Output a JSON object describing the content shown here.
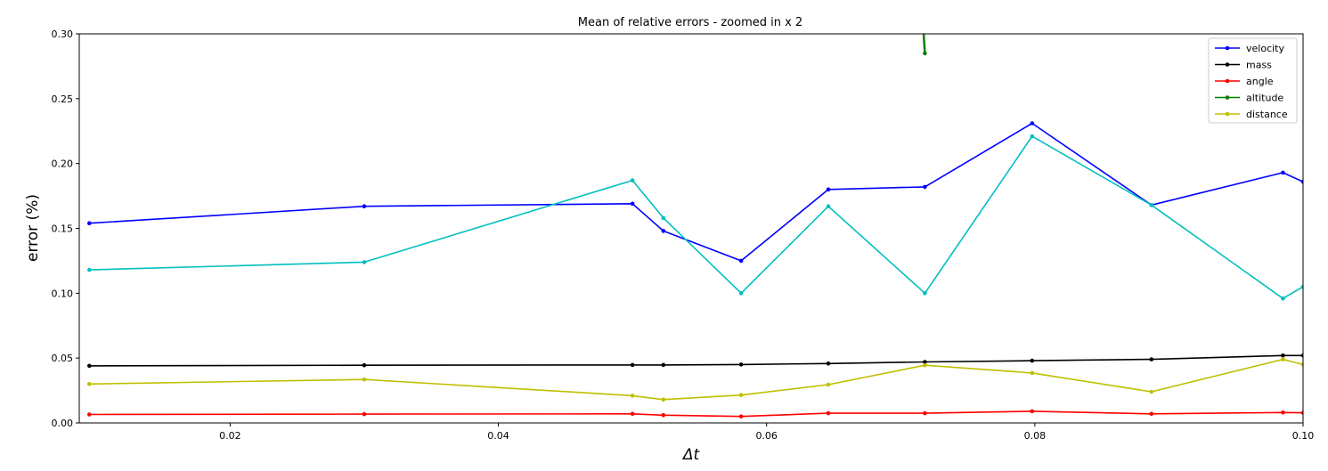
{
  "chart_data": {
    "type": "line",
    "title": "Mean of relative errors - zoomed in x 2",
    "xlabel": "Δt",
    "ylabel": "error (%)",
    "xlim": [
      0.00875,
      0.1
    ],
    "ylim": [
      0.0,
      0.3
    ],
    "xticks": [
      0.02,
      0.04,
      0.06,
      0.08,
      0.1
    ],
    "xtick_labels": [
      "0.02",
      "0.04",
      "0.06",
      "0.08",
      "0.10"
    ],
    "yticks": [
      0.0,
      0.05,
      0.1,
      0.15,
      0.2,
      0.25,
      0.3
    ],
    "ytick_labels": [
      "0.00",
      "0.05",
      "0.10",
      "0.15",
      "0.20",
      "0.25",
      "0.30"
    ],
    "grid": false,
    "legend": {
      "position": "top-right",
      "entries": [
        "velocity",
        "mass",
        "angle",
        "altitude",
        "distance"
      ]
    },
    "series": [
      {
        "name": "velocity",
        "color": "#0000ff",
        "marker": "dot",
        "points": [
          [
            0.0095,
            0.154
          ],
          [
            0.03,
            0.167
          ],
          [
            0.05,
            0.169
          ],
          [
            0.0523,
            0.148
          ],
          [
            0.0581,
            0.125
          ],
          [
            0.0646,
            0.18
          ],
          [
            0.0718,
            0.182
          ],
          [
            0.0798,
            0.231
          ],
          [
            0.0887,
            0.168
          ],
          [
            0.0985,
            0.193
          ],
          [
            0.1,
            0.186
          ]
        ]
      },
      {
        "name": "mass",
        "color": "#000000",
        "marker": "dot",
        "points": [
          [
            0.0095,
            0.044
          ],
          [
            0.03,
            0.0445
          ],
          [
            0.05,
            0.0447
          ],
          [
            0.0523,
            0.0447
          ],
          [
            0.0581,
            0.045
          ],
          [
            0.0646,
            0.0458
          ],
          [
            0.0718,
            0.047
          ],
          [
            0.0798,
            0.048
          ],
          [
            0.0887,
            0.049
          ],
          [
            0.0985,
            0.052
          ],
          [
            0.1,
            0.052
          ]
        ]
      },
      {
        "name": "angle",
        "color": "#ff0000",
        "marker": "dot",
        "points": [
          [
            0.0095,
            0.0065
          ],
          [
            0.03,
            0.0068
          ],
          [
            0.05,
            0.007
          ],
          [
            0.0523,
            0.006
          ],
          [
            0.0581,
            0.005
          ],
          [
            0.0646,
            0.0075
          ],
          [
            0.0718,
            0.0075
          ],
          [
            0.0798,
            0.009
          ],
          [
            0.0887,
            0.007
          ],
          [
            0.0985,
            0.008
          ],
          [
            0.1,
            0.0078
          ]
        ]
      },
      {
        "name": "altitude",
        "color": "#008000",
        "marker": "dot",
        "points": [
          [
            0.0718,
            0.285
          ],
          [
            0.07165,
            0.31
          ]
        ]
      },
      {
        "name": "distance",
        "color": "#bfbf00",
        "marker": "dot",
        "points": [
          [
            0.0095,
            0.03
          ],
          [
            0.03,
            0.0335
          ],
          [
            0.05,
            0.021
          ],
          [
            0.0523,
            0.018
          ],
          [
            0.0581,
            0.0215
          ],
          [
            0.0646,
            0.0295
          ],
          [
            0.0718,
            0.0445
          ],
          [
            0.0798,
            0.0385
          ],
          [
            0.0887,
            0.024
          ],
          [
            0.0985,
            0.049
          ],
          [
            0.1,
            0.045
          ]
        ]
      },
      {
        "color": "#00bfbf",
        "marker": "dot",
        "points": [
          [
            0.0095,
            0.118
          ],
          [
            0.03,
            0.124
          ],
          [
            0.05,
            0.187
          ],
          [
            0.0523,
            0.158
          ],
          [
            0.0581,
            0.1
          ],
          [
            0.0646,
            0.167
          ],
          [
            0.0718,
            0.1
          ],
          [
            0.0798,
            0.221
          ],
          [
            0.0887,
            0.168
          ],
          [
            0.0985,
            0.096
          ],
          [
            0.1,
            0.105
          ]
        ]
      }
    ]
  }
}
